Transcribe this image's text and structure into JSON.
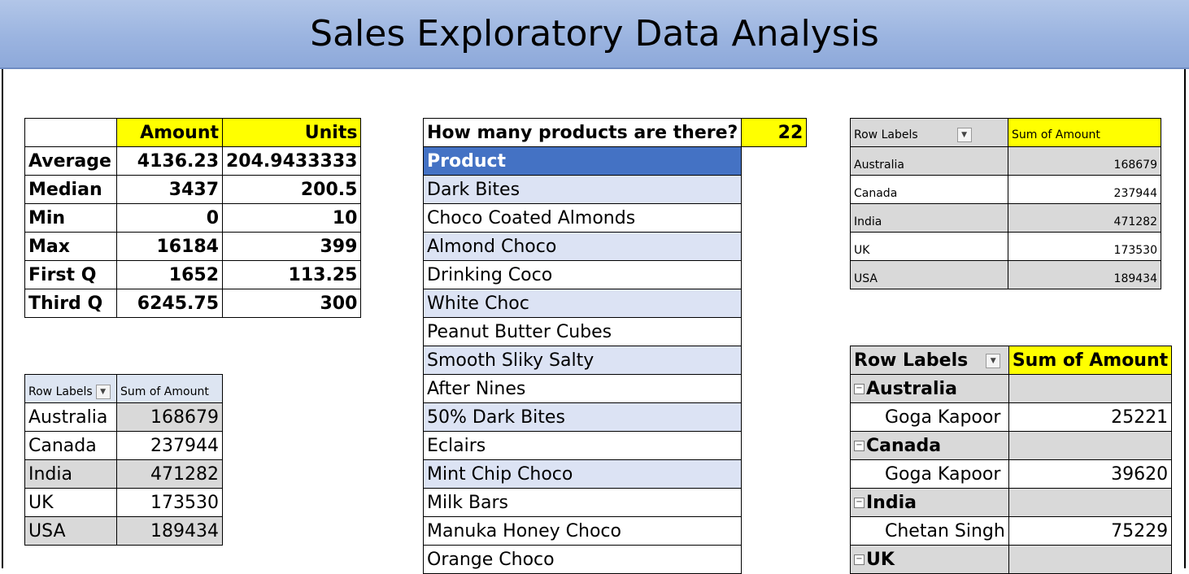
{
  "banner": {
    "title": "Sales Exploratory Data Analysis"
  },
  "stats": {
    "headers": [
      "",
      "Amount",
      "Units"
    ],
    "rows": [
      {
        "label": "Average",
        "amount": "4136.23",
        "units": "204.9433333"
      },
      {
        "label": "Median",
        "amount": "3437",
        "units": "200.5"
      },
      {
        "label": "Min",
        "amount": "0",
        "units": "10"
      },
      {
        "label": "Max",
        "amount": "16184",
        "units": "399"
      },
      {
        "label": "First Q",
        "amount": "1652",
        "units": "113.25"
      },
      {
        "label": "Third Q",
        "amount": "6245.75",
        "units": "300"
      }
    ]
  },
  "pivot_left": {
    "row_labels": "Row Labels",
    "sum_label": "Sum of Amount",
    "rows": [
      {
        "country": "Australia",
        "amount": "168679"
      },
      {
        "country": "Canada",
        "amount": "237944"
      },
      {
        "country": "India",
        "amount": "471282"
      },
      {
        "country": "UK",
        "amount": "173530"
      },
      {
        "country": "USA",
        "amount": "189434"
      }
    ]
  },
  "products": {
    "question": "How many products are there?",
    "count": "22",
    "header": "Product",
    "items": [
      "Dark Bites",
      "Choco Coated Almonds",
      "Almond Choco",
      "Drinking Coco",
      "White Choc",
      "Peanut Butter Cubes",
      "Smooth Sliky Salty",
      "After Nines",
      "50% Dark Bites",
      "Eclairs",
      "Mint Chip Choco",
      "Milk Bars",
      "Manuka Honey Choco",
      "Orange Choco"
    ]
  },
  "pivot_top_right": {
    "row_labels": "Row Labels",
    "sum_label": "Sum of Amount",
    "rows": [
      {
        "country": "Australia",
        "amount": "168679"
      },
      {
        "country": "Canada",
        "amount": "237944"
      },
      {
        "country": "India",
        "amount": "471282"
      },
      {
        "country": "UK",
        "amount": "173530"
      },
      {
        "country": "USA",
        "amount": "189434"
      }
    ]
  },
  "pivot_bottom_right": {
    "row_labels": "Row Labels",
    "sum_label": "Sum of Amount",
    "groups": [
      {
        "country": "Australia",
        "person": "Goga Kapoor",
        "amount": "25221"
      },
      {
        "country": "Canada",
        "person": "Goga Kapoor",
        "amount": "39620"
      },
      {
        "country": "India",
        "person": "Chetan Singh",
        "amount": "75229"
      },
      {
        "country": "UK"
      }
    ]
  },
  "colors": {
    "highlight": "#ffff00",
    "header_blue": "#4472c4",
    "band": "#dce3f4",
    "banner": "#9bb4e0"
  }
}
